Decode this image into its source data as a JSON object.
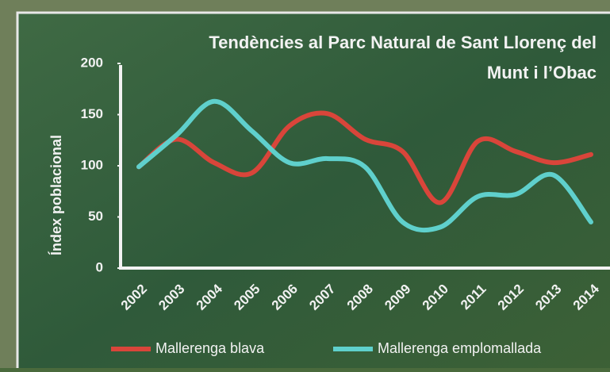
{
  "chart_data": {
    "type": "line",
    "title": [
      "Tendències al Parc Natural de Sant Llorenç del",
      "Munt i l’Obac"
    ],
    "y_label": "Índex poblacional",
    "categories": [
      "2002",
      "2003",
      "2004",
      "2005",
      "2006",
      "2007",
      "2008",
      "2009",
      "2010",
      "2011",
      "2012",
      "2013",
      "2014"
    ],
    "series": [
      {
        "name": "Mallerenga blava",
        "color": "#d9453a",
        "values": [
          99,
          126,
          103,
          93,
          139,
          151,
          126,
          114,
          64,
          124,
          114,
          103,
          111
        ]
      },
      {
        "name": "Mallerenga emplomallada",
        "color": "#5fd0cc",
        "values": [
          99,
          130,
          163,
          134,
          103,
          107,
          99,
          45,
          40,
          70,
          72,
          91,
          45
        ]
      }
    ],
    "ylim": [
      0,
      200
    ],
    "yticks": [
      0,
      50,
      100,
      150,
      200
    ],
    "smooth": true
  }
}
